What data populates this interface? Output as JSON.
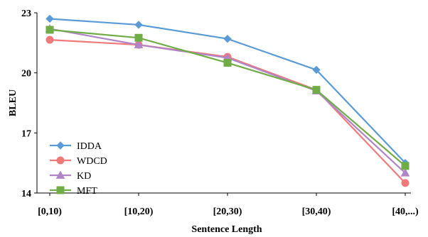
{
  "chart_data": {
    "type": "line",
    "title": "",
    "xlabel": "Sentence Length",
    "ylabel": "BLEU",
    "categories": [
      "[0,10)",
      "[10,20)",
      "[20,30)",
      "[30,40)",
      "[40,...)"
    ],
    "ylim": [
      14,
      23
    ],
    "yticks": [
      14,
      17,
      20,
      23
    ],
    "grid": false,
    "legend": "bottom-left",
    "series": [
      {
        "name": "IDDA",
        "color": "#5B9BD5",
        "marker": "diamond",
        "values": [
          22.7,
          22.4,
          21.7,
          20.15,
          15.5
        ]
      },
      {
        "name": "WDCD",
        "color": "#F07A7A",
        "marker": "circle",
        "values": [
          21.65,
          21.4,
          20.8,
          19.15,
          14.5
        ]
      },
      {
        "name": "KD",
        "color": "#B085C7",
        "marker": "triangle",
        "values": [
          22.2,
          21.4,
          20.75,
          19.1,
          15.0
        ]
      },
      {
        "name": "MFT",
        "color": "#70AD47",
        "marker": "square",
        "values": [
          22.15,
          21.75,
          20.5,
          19.15,
          15.35
        ]
      }
    ]
  }
}
